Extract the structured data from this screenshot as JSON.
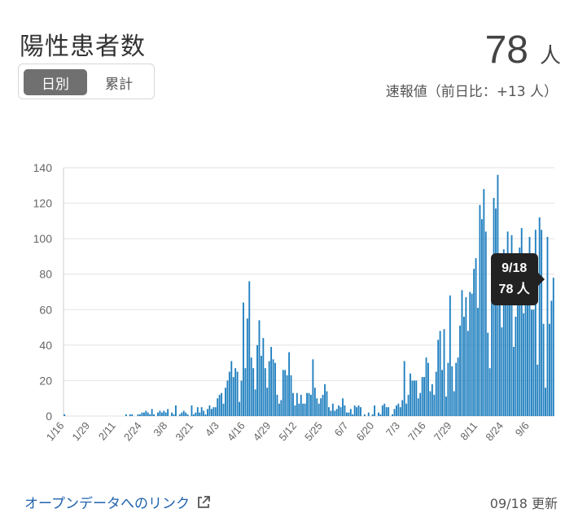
{
  "header": {
    "title": "陽性患者数",
    "toggle": {
      "daily": "日別",
      "cumulative": "累計",
      "selected": "daily"
    },
    "value": "78",
    "unit": "人",
    "subtext": "速報値（前日比：+13 人）"
  },
  "tooltip": {
    "date": "9/18",
    "value": "78 人"
  },
  "footer": {
    "link_text": "オープンデータへのリンク",
    "updated": "09/18 更新",
    "link_icon": "external-link-icon"
  },
  "colors": {
    "bar": "#1f7fbf",
    "tooltip_bg": "#222222",
    "link": "#1e62ad"
  },
  "chart_data": {
    "type": "bar",
    "ylim": [
      0,
      140
    ],
    "yticks": [
      0,
      20,
      40,
      60,
      80,
      100,
      120,
      140
    ],
    "xticks": [
      "1/16",
      "1/29",
      "2/11",
      "2/24",
      "3/8",
      "3/21",
      "4/3",
      "4/16",
      "4/29",
      "5/12",
      "5/25",
      "6/7",
      "6/20",
      "7/3",
      "7/16",
      "7/29",
      "8/11",
      "8/24",
      "9/6"
    ],
    "grid": true,
    "start_date": "1/16",
    "series": [
      {
        "values": [
          1,
          0,
          0,
          0,
          0,
          0,
          0,
          0,
          0,
          0,
          0,
          0,
          0,
          0,
          0,
          0,
          0,
          0,
          0,
          0,
          0,
          0,
          0,
          0,
          0,
          0,
          0,
          0,
          0,
          0,
          0,
          1,
          0,
          1,
          1,
          0,
          0,
          1,
          1,
          2,
          2,
          3,
          2,
          1,
          4,
          1,
          0,
          2,
          3,
          2,
          3,
          2,
          4,
          0,
          2,
          1,
          6,
          0,
          1,
          2,
          3,
          2,
          1,
          0,
          6,
          1,
          2,
          5,
          2,
          5,
          3,
          1,
          4,
          6,
          4,
          5,
          5,
          10,
          12,
          13,
          7,
          16,
          20,
          25,
          31,
          22,
          27,
          25,
          8,
          20,
          64,
          27,
          55,
          76,
          33,
          27,
          15,
          40,
          54,
          34,
          44,
          27,
          16,
          31,
          39,
          32,
          30,
          12,
          7,
          9,
          26,
          26,
          23,
          36,
          23,
          13,
          6,
          13,
          7,
          12,
          7,
          7,
          13,
          13,
          12,
          32,
          16,
          10,
          7,
          10,
          12,
          18,
          14,
          5,
          3,
          7,
          3,
          4,
          6,
          5,
          10,
          6,
          2,
          2,
          4,
          1,
          6,
          5,
          6,
          5,
          0,
          1,
          0,
          2,
          0,
          1,
          6,
          0,
          2,
          1,
          6,
          7,
          5,
          5,
          0,
          1,
          4,
          6,
          7,
          5,
          9,
          31,
          7,
          12,
          24,
          20,
          20,
          20,
          10,
          13,
          22,
          22,
          33,
          30,
          14,
          18,
          12,
          25,
          43,
          48,
          26,
          49,
          11,
          30,
          68,
          28,
          14,
          30,
          33,
          51,
          71,
          56,
          67,
          48,
          70,
          69,
          83,
          89,
          61,
          119,
          111,
          128,
          104,
          47,
          27,
          66,
          123,
          117,
          136,
          79,
          50,
          94,
          84,
          104,
          86,
          102,
          39,
          56,
          87,
          95,
          106,
          58,
          88,
          69,
          101,
          60,
          60,
          105,
          29,
          112,
          105,
          52,
          16,
          101,
          52,
          65,
          78
        ]
      }
    ]
  }
}
